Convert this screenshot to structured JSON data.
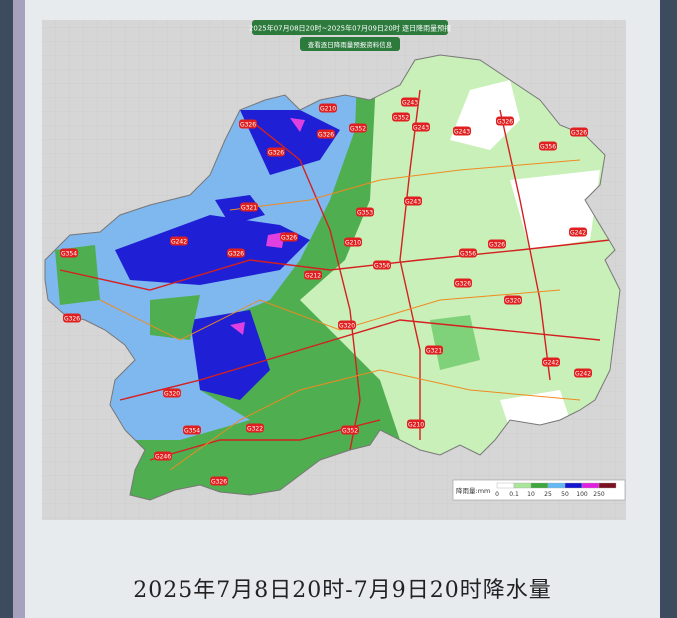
{
  "header": {
    "title": "2025年07月08日20时~2025年07月09日20时 逐日降雨量预报",
    "button": "查看逐日降雨量预报资料信息"
  },
  "road_labels": [
    "G243",
    "G243",
    "G210",
    "G326",
    "G326",
    "G352",
    "G326",
    "G352",
    "G243",
    "G326",
    "G356",
    "G326",
    "G321",
    "G243",
    "G353",
    "G326",
    "G242",
    "G210",
    "G326",
    "G356",
    "G212",
    "G356",
    "G326",
    "G242",
    "G326",
    "G320",
    "G354",
    "G326",
    "G320",
    "G321",
    "G242",
    "G210",
    "G354",
    "G322",
    "G320",
    "G352",
    "G326",
    "G246",
    "G242"
  ],
  "legend": {
    "title": "降雨量:mm",
    "levels": [
      "0",
      "0.1",
      "10",
      "25",
      "50",
      "100",
      "250"
    ]
  },
  "caption": "2025年7月8日20时-7月9日20时降水量"
}
